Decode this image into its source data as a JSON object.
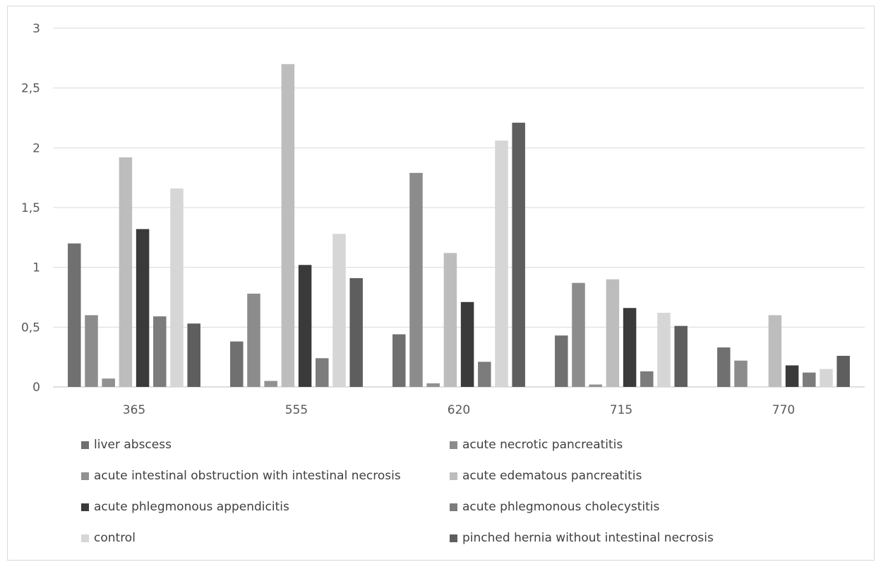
{
  "chart_data": {
    "type": "bar",
    "title": "",
    "xlabel": "",
    "ylabel": "",
    "categories": [
      "365",
      "555",
      "620",
      "715",
      "770"
    ],
    "ylim": [
      0,
      3
    ],
    "yticks": [
      "0",
      "0,5",
      "1",
      "1,5",
      "2",
      "2,5",
      "3"
    ],
    "grid": true,
    "legend_position": "bottom",
    "series": [
      {
        "name": "liver abscess",
        "color": "#707070",
        "values": [
          1.2,
          0.38,
          0.44,
          0.43,
          0.33
        ]
      },
      {
        "name": "acute necrotic pancreatitis",
        "color": "#8c8c8c",
        "values": [
          0.6,
          0.78,
          1.79,
          0.87,
          0.22
        ]
      },
      {
        "name": "acute intestinal obstruction with intestinal necrosis",
        "color": "#919191",
        "values": [
          0.07,
          0.05,
          0.03,
          0.02,
          0.0
        ]
      },
      {
        "name": "acute edematous pancreatitis",
        "color": "#bdbdbd",
        "values": [
          1.92,
          2.7,
          1.12,
          0.9,
          0.6
        ]
      },
      {
        "name": "acute phlegmonous appendicitis",
        "color": "#3a3a3a",
        "values": [
          1.32,
          1.02,
          0.71,
          0.66,
          0.18
        ]
      },
      {
        "name": "acute phlegmonous cholecystitis",
        "color": "#7c7c7c",
        "values": [
          0.59,
          0.24,
          0.21,
          0.13,
          0.12
        ]
      },
      {
        "name": "control",
        "color": "#d6d6d6",
        "values": [
          1.66,
          1.28,
          2.06,
          0.62,
          0.15
        ]
      },
      {
        "name": "pinched hernia without intestinal necrosis",
        "color": "#5e5e5e",
        "values": [
          0.53,
          0.91,
          2.21,
          0.51,
          0.26
        ]
      }
    ]
  }
}
